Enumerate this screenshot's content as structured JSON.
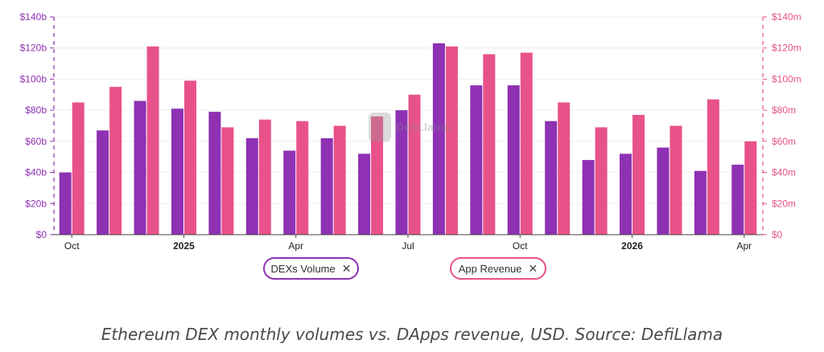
{
  "chart_data": {
    "type": "bar",
    "series": [
      {
        "name": "DEXs Volume",
        "axis": "left",
        "color": "#8e31b3",
        "values": [
          40,
          67,
          86,
          81,
          79,
          62,
          54,
          62,
          52,
          80,
          123,
          96,
          96,
          73,
          48,
          52,
          56,
          41,
          45
        ]
      },
      {
        "name": "App Revenue",
        "axis": "right",
        "color": "#e8528a",
        "values": [
          85,
          95,
          121,
          99,
          69,
          74,
          73,
          70,
          76,
          90,
          121,
          116,
          117,
          85,
          69,
          77,
          70,
          87,
          60
        ]
      }
    ],
    "x_ticks": [
      {
        "label": "Oct",
        "index": 0,
        "bold": false
      },
      {
        "label": "2025",
        "index": 3,
        "bold": true
      },
      {
        "label": "Apr",
        "index": 6,
        "bold": false
      },
      {
        "label": "Jul",
        "index": 9,
        "bold": false
      },
      {
        "label": "Oct",
        "index": 12,
        "bold": false
      },
      {
        "label": "2026",
        "index": 15,
        "bold": true
      },
      {
        "label": "Apr",
        "index": 18,
        "bold": false
      }
    ],
    "y_left": {
      "ticks": [
        "$0",
        "$20b",
        "$40b",
        "$60b",
        "$80b",
        "$100b",
        "$120b",
        "$140b"
      ],
      "range": [
        0,
        140
      ],
      "color": "#8e31b3"
    },
    "y_right": {
      "ticks": [
        "$0",
        "$20m",
        "$40m",
        "$60m",
        "$80m",
        "$100m",
        "$120m",
        "$140m"
      ],
      "range": [
        0,
        140
      ],
      "color": "#e8528a"
    },
    "grid": true,
    "legend_placement": "bottom-center"
  },
  "legend": {
    "dex_label": "DEXs Volume",
    "rev_label": "App Revenue",
    "close_glyph": "✕"
  },
  "watermark": {
    "text": "DefiLlama"
  },
  "caption": "Ethereum DEX monthly volumes vs. DApps revenue, USD. Source: DefiLlama"
}
